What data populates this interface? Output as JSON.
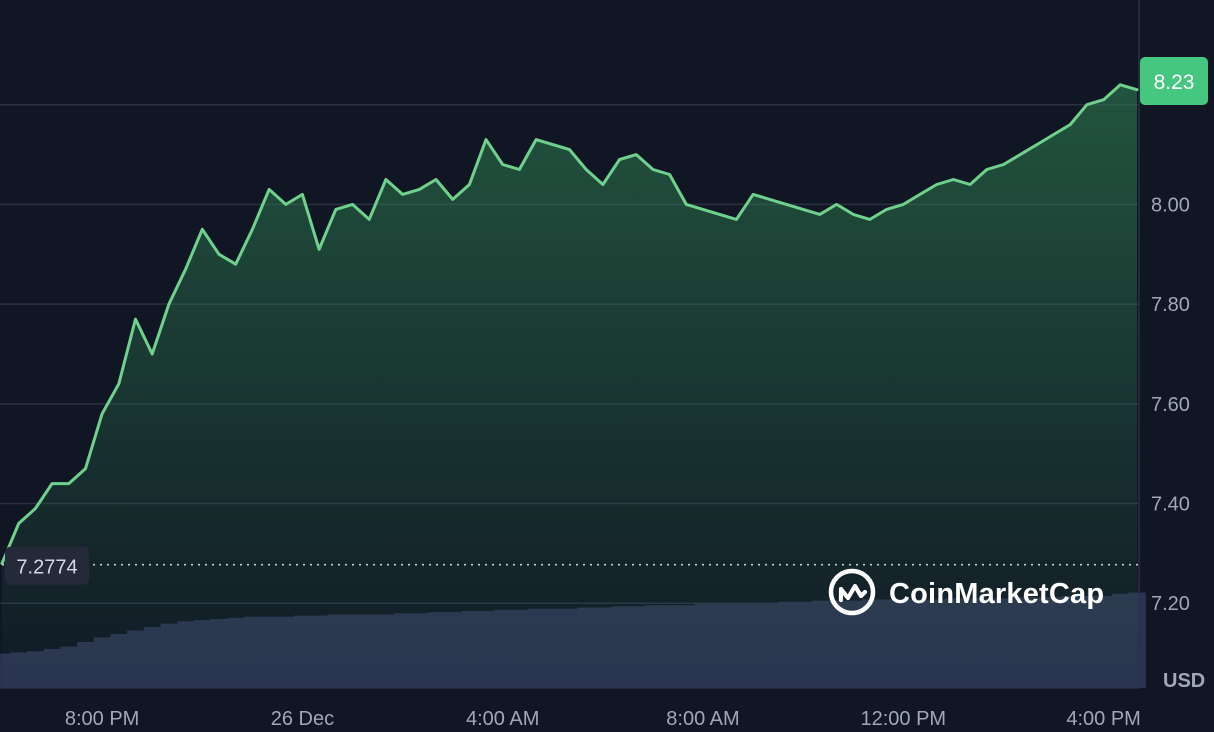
{
  "chart_data": {
    "type": "line",
    "x": [
      "18:00",
      "18:20",
      "18:40",
      "19:00",
      "19:20",
      "19:40",
      "20:00",
      "20:20",
      "20:40",
      "21:00",
      "21:20",
      "21:40",
      "22:00",
      "22:20",
      "22:40",
      "23:00",
      "23:20",
      "23:40",
      "00:00",
      "00:20",
      "00:40",
      "01:00",
      "01:20",
      "01:40",
      "02:00",
      "02:20",
      "02:40",
      "03:00",
      "03:20",
      "03:40",
      "04:00",
      "04:20",
      "04:40",
      "05:00",
      "05:20",
      "05:40",
      "06:00",
      "06:20",
      "06:40",
      "07:00",
      "07:20",
      "07:40",
      "08:00",
      "08:20",
      "08:40",
      "09:00",
      "09:20",
      "09:40",
      "10:00",
      "10:20",
      "10:40",
      "11:00",
      "11:20",
      "11:40",
      "12:00",
      "12:20",
      "12:40",
      "13:00",
      "13:20",
      "13:40",
      "14:00",
      "14:20",
      "14:40",
      "15:00",
      "15:20",
      "15:40",
      "16:00",
      "16:20",
      "16:40"
    ],
    "series": [
      {
        "type": "line",
        "values": [
          7.28,
          7.36,
          7.39,
          7.44,
          7.44,
          7.47,
          7.58,
          7.64,
          7.77,
          7.7,
          7.8,
          7.87,
          7.95,
          7.9,
          7.88,
          7.95,
          8.03,
          8.0,
          8.02,
          7.91,
          7.99,
          8.0,
          7.97,
          8.05,
          8.02,
          8.03,
          8.05,
          8.01,
          8.04,
          8.13,
          8.08,
          8.07,
          8.13,
          8.12,
          8.11,
          8.07,
          8.04,
          8.09,
          8.1,
          8.07,
          8.06,
          8.0,
          7.99,
          7.98,
          7.97,
          8.02,
          8.01,
          8.0,
          7.99,
          7.98,
          8.0,
          7.98,
          7.97,
          7.99,
          8.0,
          8.02,
          8.04,
          8.05,
          8.04,
          8.07,
          8.08,
          8.1,
          8.12,
          8.14,
          8.16,
          8.2,
          8.21,
          8.24,
          8.23
        ]
      },
      {
        "type": "bar",
        "relative_volume": [
          0.3,
          0.31,
          0.32,
          0.34,
          0.36,
          0.4,
          0.44,
          0.47,
          0.5,
          0.53,
          0.56,
          0.58,
          0.59,
          0.6,
          0.61,
          0.62,
          0.62,
          0.62,
          0.63,
          0.63,
          0.64,
          0.64,
          0.64,
          0.64,
          0.65,
          0.65,
          0.66,
          0.66,
          0.67,
          0.67,
          0.68,
          0.68,
          0.69,
          0.69,
          0.69,
          0.7,
          0.7,
          0.71,
          0.71,
          0.72,
          0.72,
          0.72,
          0.73,
          0.73,
          0.73,
          0.74,
          0.74,
          0.75,
          0.75,
          0.76,
          0.76,
          0.76,
          0.77,
          0.77,
          0.77,
          0.77,
          0.77,
          0.78,
          0.78,
          0.78,
          0.78,
          0.79,
          0.79,
          0.79,
          0.8,
          0.8,
          0.8,
          0.82,
          0.83
        ]
      }
    ],
    "xlabel": "",
    "ylabel": "",
    "ylim": [
      7.03,
      8.41
    ],
    "y_ticks": [
      "8.00",
      "7.80",
      "7.60",
      "7.40",
      "7.20"
    ],
    "y_tick_values": [
      8.0,
      7.8,
      7.6,
      7.4,
      7.2
    ],
    "x_ticks": [
      "8:00 PM",
      "26 Dec",
      "4:00 AM",
      "8:00 AM",
      "12:00 PM",
      "4:00 PM"
    ],
    "x_tick_at": [
      "20:00",
      "00:00",
      "04:00",
      "08:00",
      "12:00",
      "16:00"
    ],
    "current_price": "8.23",
    "open_price": "7.2774",
    "open_value": 7.2774,
    "unit_label": "USD",
    "watermark": "CoinMarketCap",
    "grid": true,
    "colors": {
      "background": "#101624",
      "line": "#6fd28c",
      "fill": "#2e7d4f",
      "volume": "#2b3350",
      "price_badge": "#46c780",
      "grid": "#2a3142"
    }
  }
}
